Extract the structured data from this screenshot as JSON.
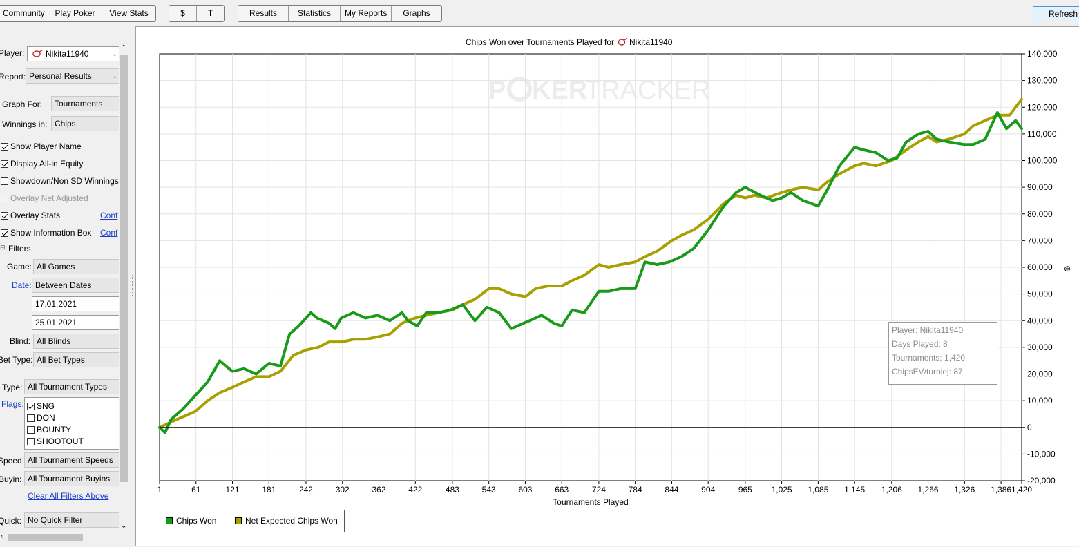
{
  "toolbar": {
    "nav_group": [
      "Community",
      "Play Poker",
      "View Stats"
    ],
    "currency_group": [
      "$",
      "T"
    ],
    "view_group": [
      "Results",
      "Statistics",
      "My Reports",
      "Graphs"
    ],
    "refresh": "Refresh"
  },
  "sidebar": {
    "player_label": "Player:",
    "player_value": "Nikita11940",
    "report_label": "Report:",
    "report_value": "Personal Results",
    "graph_for_label": "Graph For:",
    "graph_for_value": "Tournaments",
    "winnings_in_label": "Winnings in:",
    "winnings_in_value": "Chips",
    "checkboxes": [
      {
        "label": "Show Player Name",
        "checked": true
      },
      {
        "label": "Display All-in Equity",
        "checked": true
      },
      {
        "label": "Showdown/Non SD Winnings",
        "checked": false
      },
      {
        "label": "Overlay Net Adjusted",
        "checked": false
      },
      {
        "label": "Overlay Stats",
        "checked": true
      },
      {
        "label": "Show Information Box",
        "checked": true
      }
    ],
    "conf_link": "Conf",
    "filters_label": "Filters",
    "game_label": "Game:",
    "game_value": "All Games",
    "date_label": "Date:",
    "date_value": "Between Dates",
    "date_from": "17.01.2021",
    "date_to": "25.01.2021",
    "blind_label": "Blind:",
    "blind_value": "All Blinds",
    "bet_type_label": "Bet Type:",
    "bet_type_value": "All Bet Types",
    "type_label": "Type:",
    "type_value": "All Tournament Types",
    "flags_label": "Flags:",
    "flags": [
      {
        "label": "SNG",
        "checked": true
      },
      {
        "label": "DON",
        "checked": false
      },
      {
        "label": "BOUNTY",
        "checked": false
      },
      {
        "label": "SHOOTOUT",
        "checked": false
      }
    ],
    "speed_label": "Speed:",
    "speed_value": "All Tournament Speeds",
    "buyin_label": "Buyin:",
    "buyin_value": "All Tournament Buyins",
    "clear_filters": "Clear All Filters Above",
    "quick_label": "Quick:",
    "quick_value": "No Quick Filter"
  },
  "info_box": {
    "player": "Player: Nikita11940",
    "days": "Days Played: 8",
    "tournaments": "Tournaments: 1,420",
    "chipsev": "ChipsEV/turniej: 87"
  },
  "watermark": {
    "a": "P",
    "b": "KER",
    "c": "TRACKER"
  },
  "chart_data": {
    "type": "line",
    "title": "Chips Won over Tournaments Played for",
    "title_player": "Nikita11940",
    "xlabel": "Tournaments Played",
    "ylabel": "",
    "xlim": [
      1,
      1420
    ],
    "ylim": [
      -20000,
      140000
    ],
    "x_ticks": [
      {
        "v": 1,
        "label": "1"
      },
      {
        "v": 61,
        "label": "61"
      },
      {
        "v": 121,
        "label": "121"
      },
      {
        "v": 181,
        "label": "181"
      },
      {
        "v": 242,
        "label": "242"
      },
      {
        "v": 302,
        "label": "302"
      },
      {
        "v": 362,
        "label": "362"
      },
      {
        "v": 422,
        "label": "422"
      },
      {
        "v": 483,
        "label": "483"
      },
      {
        "v": 543,
        "label": "543"
      },
      {
        "v": 603,
        "label": "603"
      },
      {
        "v": 663,
        "label": "663"
      },
      {
        "v": 724,
        "label": "724"
      },
      {
        "v": 784,
        "label": "784"
      },
      {
        "v": 844,
        "label": "844"
      },
      {
        "v": 904,
        "label": "904"
      },
      {
        "v": 965,
        "label": "965"
      },
      {
        "v": 1025,
        "label": "1,025"
      },
      {
        "v": 1085,
        "label": "1,085"
      },
      {
        "v": 1145,
        "label": "1,145"
      },
      {
        "v": 1206,
        "label": "1,206"
      },
      {
        "v": 1266,
        "label": "1,266"
      },
      {
        "v": 1326,
        "label": "1,326"
      },
      {
        "v": 1386,
        "label": "1,386"
      },
      {
        "v": 1420,
        "label": "1,420"
      }
    ],
    "y_ticks": [
      {
        "v": 140000,
        "label": "140,000"
      },
      {
        "v": 130000,
        "label": "130,000"
      },
      {
        "v": 120000,
        "label": "120,000"
      },
      {
        "v": 110000,
        "label": "110,000"
      },
      {
        "v": 100000,
        "label": "100,000"
      },
      {
        "v": 90000,
        "label": "90,000"
      },
      {
        "v": 80000,
        "label": "80,000"
      },
      {
        "v": 70000,
        "label": "70,000"
      },
      {
        "v": 60000,
        "label": "60,000"
      },
      {
        "v": 50000,
        "label": "50,000"
      },
      {
        "v": 40000,
        "label": "40,000"
      },
      {
        "v": 30000,
        "label": "30,000"
      },
      {
        "v": 20000,
        "label": "20,000"
      },
      {
        "v": 10000,
        "label": "10,000"
      },
      {
        "v": 0,
        "label": "0"
      },
      {
        "v": -10000,
        "label": "-10,000"
      },
      {
        "v": -20000,
        "label": "-20,000"
      }
    ],
    "y_axis_side": "right",
    "grid": true,
    "legend_position": "bottom-left",
    "series": [
      {
        "name": "Chips Won",
        "color": "#1a9a1a",
        "x": [
          1,
          10,
          20,
          40,
          60,
          80,
          100,
          110,
          121,
          140,
          160,
          181,
          200,
          215,
          230,
          250,
          260,
          280,
          290,
          300,
          320,
          340,
          360,
          380,
          400,
          410,
          425,
          440,
          460,
          480,
          500,
          520,
          540,
          560,
          580,
          600,
          610,
          630,
          650,
          663,
          680,
          700,
          724,
          740,
          760,
          784,
          800,
          820,
          840,
          860,
          880,
          904,
          930,
          950,
          965,
          990,
          1010,
          1025,
          1040,
          1060,
          1085,
          1100,
          1120,
          1145,
          1160,
          1180,
          1200,
          1215,
          1230,
          1250,
          1266,
          1280,
          1300,
          1326,
          1340,
          1360,
          1380,
          1395,
          1410,
          1420
        ],
        "y": [
          0,
          -2000,
          3000,
          7000,
          12000,
          17000,
          25000,
          23000,
          21000,
          22000,
          20000,
          24000,
          23000,
          35000,
          38000,
          43000,
          41000,
          39000,
          37000,
          41000,
          43000,
          41000,
          42000,
          40000,
          43000,
          40000,
          38000,
          43000,
          43000,
          44000,
          46000,
          40000,
          45000,
          43000,
          37000,
          39000,
          40000,
          42000,
          39000,
          38000,
          44000,
          43000,
          51000,
          51000,
          52000,
          52000,
          62000,
          61000,
          62000,
          64000,
          67000,
          74000,
          83000,
          88000,
          90000,
          87000,
          85000,
          86000,
          88000,
          85000,
          83000,
          89000,
          98000,
          105000,
          104000,
          103000,
          100000,
          101000,
          107000,
          110000,
          111000,
          108000,
          107000,
          106000,
          106000,
          108000,
          118000,
          112000,
          115000,
          112000
        ]
      },
      {
        "name": "Net Expected Chips Won",
        "color": "#a8a000",
        "x": [
          1,
          20,
          40,
          60,
          80,
          100,
          121,
          140,
          160,
          181,
          200,
          221,
          242,
          262,
          280,
          302,
          320,
          340,
          362,
          380,
          400,
          410,
          422,
          440,
          460,
          483,
          500,
          520,
          543,
          560,
          580,
          603,
          620,
          640,
          663,
          680,
          700,
          724,
          740,
          760,
          784,
          800,
          820,
          844,
          860,
          880,
          904,
          930,
          950,
          965,
          980,
          1000,
          1025,
          1040,
          1060,
          1085,
          1100,
          1120,
          1145,
          1160,
          1180,
          1206,
          1230,
          1250,
          1266,
          1280,
          1300,
          1326,
          1340,
          1360,
          1380,
          1400,
          1420
        ],
        "y": [
          0,
          2000,
          4000,
          6000,
          10000,
          13000,
          15000,
          17000,
          19000,
          19000,
          21000,
          27000,
          29000,
          30000,
          32000,
          32000,
          33000,
          33000,
          34000,
          35000,
          39000,
          40000,
          41000,
          42000,
          43000,
          44000,
          46000,
          48000,
          52000,
          52000,
          50000,
          49000,
          52000,
          53000,
          53000,
          55000,
          57000,
          61000,
          60000,
          61000,
          62000,
          64000,
          66000,
          70000,
          72000,
          74000,
          78000,
          84000,
          87000,
          86000,
          87000,
          86000,
          88000,
          89000,
          90000,
          89000,
          92000,
          95000,
          98000,
          99000,
          98000,
          100000,
          104000,
          107000,
          109000,
          107000,
          108000,
          110000,
          113000,
          115000,
          117000,
          117000,
          123000
        ]
      }
    ]
  }
}
